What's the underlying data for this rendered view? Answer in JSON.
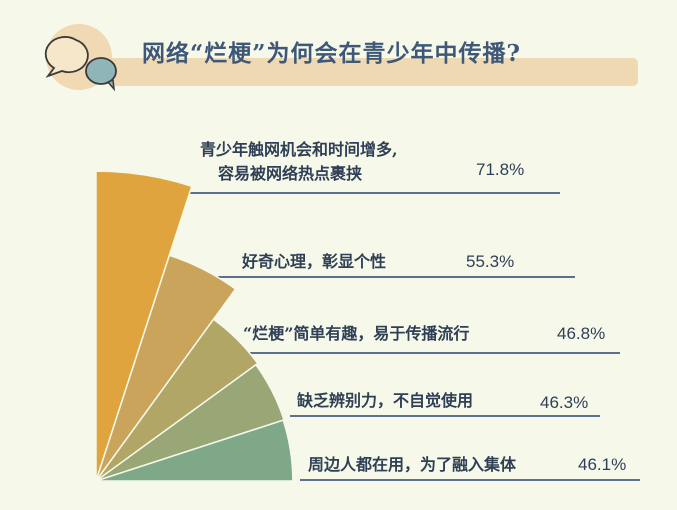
{
  "title": "网络“烂梗”为何会在青少年中传播?",
  "chart_data": {
    "type": "pie",
    "title": "网络“烂梗”为何会在青少年中传播?",
    "categories": [
      "青少年触网机会和时间增多，容易被网络热点裹挟",
      "好奇心理，彰显个性",
      "“烂梗”简单有趣，易于传播流行",
      "缺乏辨别力，不自觉使用",
      "周边人都在用，为了融入集体"
    ],
    "label_lines": [
      [
        "青少年触网机会和时间增多,",
        "容易被网络热点裹挟"
      ],
      [
        "好奇心理，彰显个性"
      ],
      [
        "“烂梗”简单有趣，易于传播流行"
      ],
      [
        "缺乏辨别力，不自觉使用"
      ],
      [
        "周边人都在用，为了融入集体"
      ]
    ],
    "values": [
      71.8,
      55.3,
      46.8,
      46.3,
      46.1
    ],
    "value_labels": [
      "71.8%",
      "55.3%",
      "46.8%",
      "46.3%",
      "46.1%"
    ],
    "unit": "%",
    "colors": [
      "#e0a43f",
      "#c9a45a",
      "#b2a666",
      "#99a676",
      "#7ea888"
    ],
    "line_color": "#5d6f8e"
  }
}
